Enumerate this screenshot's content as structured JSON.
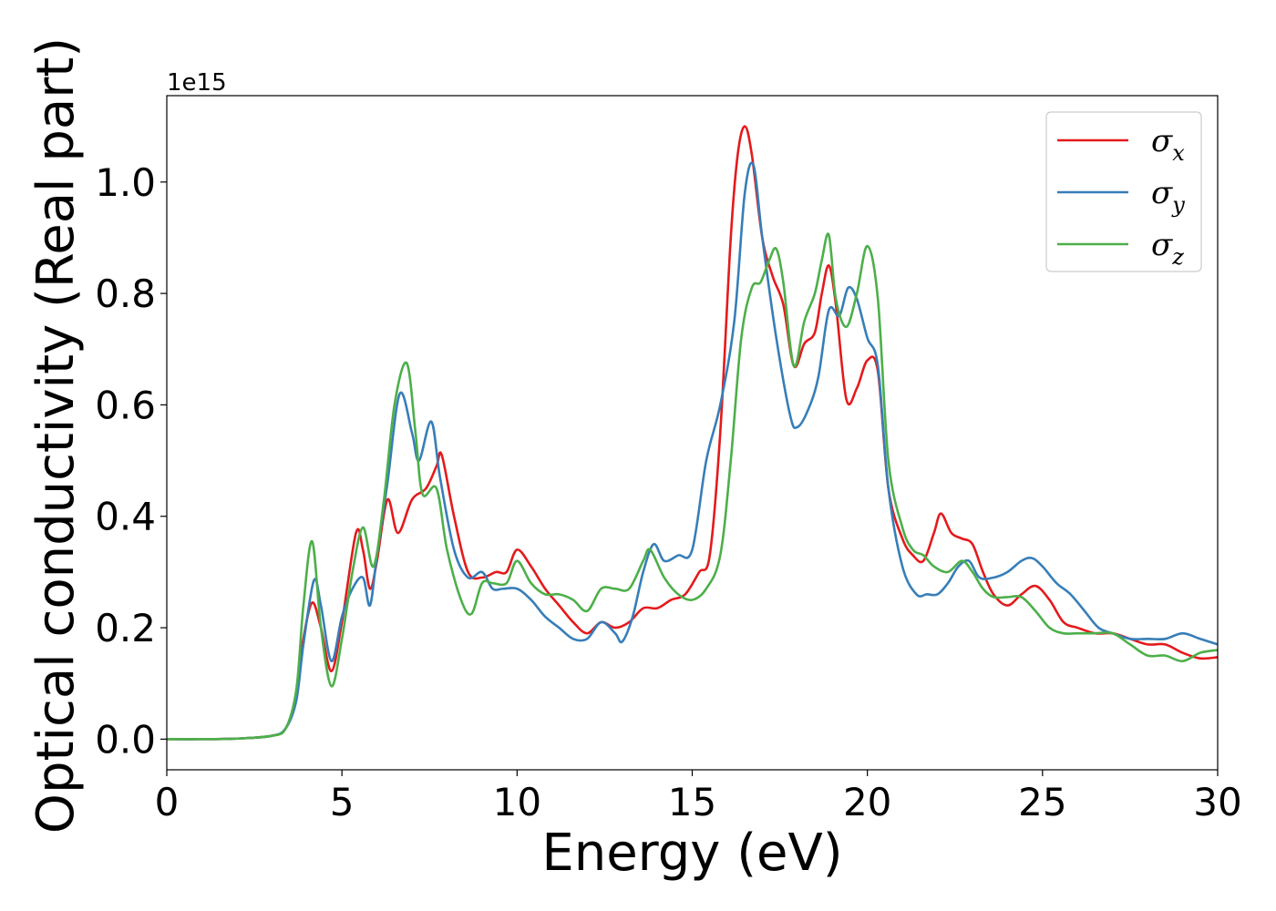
{
  "chart_data": {
    "type": "line",
    "title": "",
    "xlabel": "Energy (eV)",
    "ylabel": "Optical conductivity (Real part)",
    "y_offset_label": "1e15",
    "xlim": [
      0,
      30
    ],
    "ylim": [
      -0.055,
      1.155
    ],
    "x_ticks": [
      0,
      5,
      10,
      15,
      20,
      25,
      30
    ],
    "x_tick_labels": [
      "0",
      "5",
      "10",
      "15",
      "20",
      "25",
      "30"
    ],
    "y_ticks": [
      0.0,
      0.2,
      0.4,
      0.6,
      0.8,
      1.0
    ],
    "y_tick_labels": [
      "0.0",
      "0.2",
      "0.4",
      "0.6",
      "0.8",
      "1.0"
    ],
    "grid": false,
    "legend_position": "top-right",
    "series": [
      {
        "name": "σx",
        "symbol": "σ",
        "subscript": "x",
        "color": "#e41a1c",
        "x": [
          0,
          1,
          2,
          3,
          3.4,
          3.7,
          3.9,
          4.15,
          4.4,
          4.7,
          5.0,
          5.4,
          5.6,
          5.8,
          6.0,
          6.3,
          6.6,
          7.0,
          7.4,
          7.7,
          7.85,
          8.2,
          8.6,
          9.0,
          9.4,
          9.7,
          10.0,
          10.4,
          10.8,
          11.2,
          11.6,
          12.0,
          12.4,
          12.8,
          13.2,
          13.6,
          14.0,
          14.4,
          14.8,
          15.2,
          15.5,
          15.8,
          16.1,
          16.3,
          16.5,
          16.7,
          17.0,
          17.3,
          17.6,
          17.9,
          18.2,
          18.5,
          18.7,
          18.9,
          19.1,
          19.4,
          19.7,
          20.0,
          20.3,
          20.6,
          21.0,
          21.3,
          21.6,
          21.9,
          22.1,
          22.4,
          22.7,
          23.0,
          23.3,
          23.6,
          24.0,
          24.4,
          24.8,
          25.2,
          25.6,
          26.0,
          26.5,
          27.0,
          27.5,
          28.0,
          28.5,
          29.0,
          29.5,
          30.0
        ],
        "y": [
          0.0,
          0.0,
          0.001,
          0.006,
          0.02,
          0.08,
          0.18,
          0.245,
          0.2,
          0.122,
          0.21,
          0.37,
          0.34,
          0.27,
          0.32,
          0.43,
          0.37,
          0.43,
          0.45,
          0.49,
          0.51,
          0.4,
          0.3,
          0.29,
          0.3,
          0.3,
          0.34,
          0.31,
          0.27,
          0.24,
          0.21,
          0.19,
          0.21,
          0.2,
          0.21,
          0.235,
          0.235,
          0.25,
          0.26,
          0.3,
          0.33,
          0.55,
          0.9,
          1.05,
          1.1,
          1.05,
          0.9,
          0.83,
          0.78,
          0.67,
          0.71,
          0.73,
          0.8,
          0.85,
          0.78,
          0.61,
          0.63,
          0.68,
          0.66,
          0.45,
          0.36,
          0.33,
          0.32,
          0.37,
          0.405,
          0.37,
          0.36,
          0.35,
          0.3,
          0.26,
          0.24,
          0.26,
          0.275,
          0.25,
          0.21,
          0.2,
          0.19,
          0.19,
          0.18,
          0.17,
          0.17,
          0.155,
          0.145,
          0.147
        ]
      },
      {
        "name": "σy",
        "symbol": "σ",
        "subscript": "y",
        "color": "#377eb8",
        "x": [
          0,
          1,
          2,
          3,
          3.4,
          3.7,
          3.9,
          4.2,
          4.4,
          4.7,
          5.0,
          5.3,
          5.6,
          5.8,
          6.0,
          6.3,
          6.65,
          7.0,
          7.2,
          7.55,
          7.8,
          8.2,
          8.6,
          9.0,
          9.3,
          9.6,
          10.0,
          10.4,
          10.8,
          11.2,
          11.6,
          12.0,
          12.4,
          12.8,
          13.0,
          13.3,
          13.6,
          13.9,
          14.2,
          14.6,
          15.0,
          15.4,
          15.8,
          16.2,
          16.5,
          16.75,
          17.0,
          17.4,
          17.8,
          18.0,
          18.3,
          18.6,
          18.9,
          19.2,
          19.45,
          19.7,
          20.0,
          20.3,
          20.6,
          21.0,
          21.4,
          21.7,
          22.0,
          22.3,
          22.6,
          22.9,
          23.2,
          23.6,
          24.0,
          24.4,
          24.7,
          25.0,
          25.4,
          25.8,
          26.2,
          26.6,
          27.0,
          27.5,
          28.0,
          28.5,
          29.0,
          29.5,
          30.0
        ],
        "y": [
          0.0,
          0.0,
          0.001,
          0.006,
          0.02,
          0.07,
          0.17,
          0.285,
          0.24,
          0.14,
          0.22,
          0.27,
          0.29,
          0.24,
          0.33,
          0.46,
          0.62,
          0.55,
          0.5,
          0.57,
          0.47,
          0.34,
          0.29,
          0.3,
          0.27,
          0.27,
          0.27,
          0.25,
          0.22,
          0.2,
          0.18,
          0.18,
          0.21,
          0.19,
          0.175,
          0.22,
          0.3,
          0.35,
          0.32,
          0.33,
          0.34,
          0.5,
          0.6,
          0.75,
          0.98,
          1.03,
          0.9,
          0.72,
          0.58,
          0.56,
          0.59,
          0.65,
          0.77,
          0.76,
          0.81,
          0.79,
          0.72,
          0.67,
          0.45,
          0.31,
          0.26,
          0.26,
          0.26,
          0.28,
          0.31,
          0.32,
          0.29,
          0.29,
          0.3,
          0.32,
          0.325,
          0.31,
          0.28,
          0.26,
          0.23,
          0.2,
          0.19,
          0.18,
          0.18,
          0.18,
          0.19,
          0.18,
          0.17
        ]
      },
      {
        "name": "σz",
        "symbol": "σ",
        "subscript": "z",
        "color": "#4daf4a",
        "x": [
          0,
          1,
          2,
          3,
          3.4,
          3.7,
          3.9,
          4.15,
          4.4,
          4.7,
          5.0,
          5.3,
          5.6,
          5.9,
          6.2,
          6.5,
          6.85,
          7.1,
          7.3,
          7.7,
          8.0,
          8.4,
          8.7,
          9.0,
          9.3,
          9.7,
          10.0,
          10.4,
          10.8,
          11.2,
          11.6,
          12.0,
          12.4,
          12.8,
          13.2,
          13.6,
          13.8,
          14.2,
          14.6,
          15.0,
          15.4,
          15.8,
          16.1,
          16.4,
          16.7,
          16.95,
          17.2,
          17.4,
          17.6,
          17.9,
          18.2,
          18.5,
          18.7,
          18.9,
          19.1,
          19.4,
          19.7,
          20.0,
          20.3,
          20.6,
          21.0,
          21.3,
          21.6,
          21.9,
          22.3,
          22.7,
          23.0,
          23.3,
          23.6,
          24.0,
          24.4,
          24.8,
          25.2,
          25.6,
          26.0,
          26.5,
          27.0,
          27.5,
          28.0,
          28.5,
          29.0,
          29.5,
          30.0
        ],
        "y": [
          0.0,
          0.0,
          0.001,
          0.006,
          0.02,
          0.09,
          0.24,
          0.355,
          0.2,
          0.095,
          0.18,
          0.3,
          0.38,
          0.31,
          0.43,
          0.6,
          0.675,
          0.55,
          0.44,
          0.45,
          0.34,
          0.25,
          0.225,
          0.28,
          0.28,
          0.28,
          0.32,
          0.28,
          0.26,
          0.26,
          0.25,
          0.23,
          0.27,
          0.27,
          0.27,
          0.32,
          0.34,
          0.29,
          0.26,
          0.25,
          0.27,
          0.33,
          0.5,
          0.72,
          0.81,
          0.82,
          0.86,
          0.88,
          0.82,
          0.67,
          0.75,
          0.8,
          0.86,
          0.905,
          0.79,
          0.74,
          0.8,
          0.885,
          0.79,
          0.5,
          0.38,
          0.34,
          0.33,
          0.31,
          0.3,
          0.32,
          0.3,
          0.27,
          0.255,
          0.255,
          0.255,
          0.23,
          0.2,
          0.19,
          0.19,
          0.19,
          0.19,
          0.17,
          0.15,
          0.15,
          0.14,
          0.155,
          0.16
        ]
      }
    ]
  }
}
